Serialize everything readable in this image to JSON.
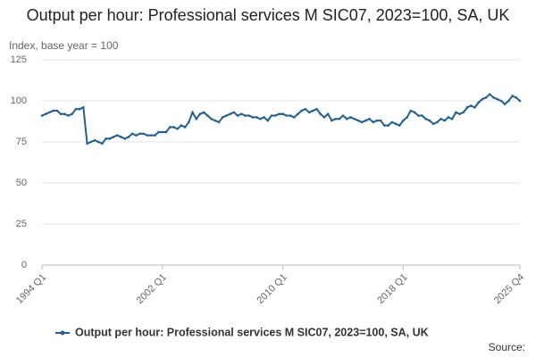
{
  "chart_data": {
    "type": "line",
    "title": "Output per hour: Professional services M SIC07, 2023=100, SA, UK",
    "y_label": "Index, base year = 100",
    "source": "Source:",
    "categories": [
      "1994 Q1",
      null,
      null,
      null,
      null,
      null,
      null,
      null,
      null,
      null,
      null,
      null,
      null,
      null,
      null,
      null,
      null,
      null,
      null,
      null,
      null,
      null,
      null,
      null,
      null,
      null,
      null,
      null,
      null,
      null,
      null,
      null,
      "2002 Q1",
      null,
      null,
      null,
      null,
      null,
      null,
      null,
      null,
      null,
      null,
      null,
      null,
      null,
      null,
      null,
      null,
      null,
      null,
      null,
      null,
      null,
      null,
      null,
      null,
      null,
      null,
      null,
      null,
      null,
      null,
      null,
      "2010 Q1",
      null,
      null,
      null,
      null,
      null,
      null,
      null,
      null,
      null,
      null,
      null,
      null,
      null,
      null,
      null,
      null,
      null,
      null,
      null,
      null,
      null,
      null,
      null,
      null,
      null,
      null,
      null,
      null,
      null,
      null,
      null,
      "2018 Q1",
      null,
      null,
      null,
      null,
      null,
      null,
      null,
      null,
      null,
      null,
      null,
      null,
      null,
      null,
      null,
      null,
      null,
      null,
      null,
      null,
      null,
      null,
      null,
      null,
      null,
      null,
      null,
      null,
      null,
      null,
      "2025 Q4"
    ],
    "series": [
      {
        "name": "Output per hour: Professional services M SIC07, 2023=100, SA, UK",
        "color": "#206095",
        "values": [
          91,
          92,
          93,
          94,
          94,
          92,
          92,
          91,
          92,
          95,
          95,
          96,
          74,
          75,
          76,
          75,
          74,
          77,
          77,
          78,
          79,
          78,
          77,
          78,
          80,
          79,
          80,
          80,
          79,
          79,
          79,
          81,
          81,
          81,
          84,
          84,
          83,
          85,
          84,
          87,
          93,
          89,
          92,
          93,
          91,
          89,
          88,
          87,
          90,
          91,
          92,
          93,
          91,
          92,
          91,
          91,
          90,
          90,
          89,
          90,
          88,
          91,
          91,
          92,
          92,
          91,
          91,
          90,
          92,
          94,
          95,
          93,
          94,
          95,
          92,
          90,
          92,
          88,
          89,
          89,
          91,
          89,
          90,
          89,
          88,
          87,
          88,
          89,
          87,
          88,
          88,
          85,
          85,
          87,
          86,
          85,
          88,
          90,
          94,
          93,
          91,
          91,
          89,
          88,
          86,
          87,
          89,
          88,
          90,
          89,
          93,
          92,
          93,
          96,
          97,
          96,
          99,
          101,
          102,
          104,
          102,
          101,
          100,
          98,
          100,
          103,
          102,
          100
        ]
      }
    ],
    "ylim": [
      0,
      125
    ],
    "yticks": [
      0,
      25,
      50,
      75,
      100,
      125
    ],
    "grid": true
  }
}
